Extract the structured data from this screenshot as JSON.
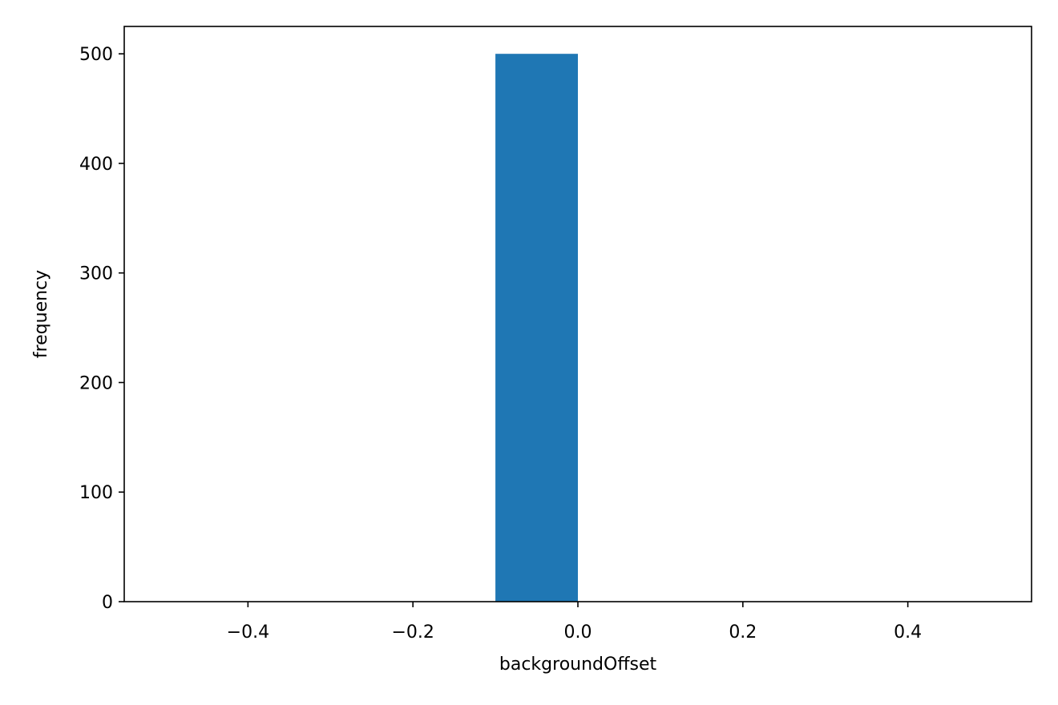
{
  "chart_data": {
    "type": "bar",
    "title": "",
    "xlabel": "backgroundOffset",
    "ylabel": "frequency",
    "xlim": [
      -0.55,
      0.55
    ],
    "ylim": [
      0,
      525
    ],
    "grid": false,
    "x_ticks": [
      {
        "value": -0.4,
        "label": "−0.4"
      },
      {
        "value": -0.2,
        "label": "−0.2"
      },
      {
        "value": 0.0,
        "label": "0.0"
      },
      {
        "value": 0.2,
        "label": "0.2"
      },
      {
        "value": 0.4,
        "label": "0.4"
      }
    ],
    "y_ticks": [
      {
        "value": 0,
        "label": "0"
      },
      {
        "value": 100,
        "label": "100"
      },
      {
        "value": 200,
        "label": "200"
      },
      {
        "value": 300,
        "label": "300"
      },
      {
        "value": 400,
        "label": "400"
      },
      {
        "value": 500,
        "label": "500"
      }
    ],
    "bins": [
      {
        "x0": -0.5,
        "x1": -0.4,
        "count": 0
      },
      {
        "x0": -0.4,
        "x1": -0.3,
        "count": 0
      },
      {
        "x0": -0.3,
        "x1": -0.2,
        "count": 0
      },
      {
        "x0": -0.2,
        "x1": -0.1,
        "count": 0
      },
      {
        "x0": -0.1,
        "x1": 0.0,
        "count": 500
      },
      {
        "x0": 0.0,
        "x1": 0.1,
        "count": 0
      },
      {
        "x0": 0.1,
        "x1": 0.2,
        "count": 0
      },
      {
        "x0": 0.2,
        "x1": 0.3,
        "count": 0
      },
      {
        "x0": 0.3,
        "x1": 0.4,
        "count": 0
      },
      {
        "x0": 0.4,
        "x1": 0.5,
        "count": 0
      }
    ],
    "colors": {
      "bar": "#1f77b4",
      "axis": "#000000"
    }
  }
}
